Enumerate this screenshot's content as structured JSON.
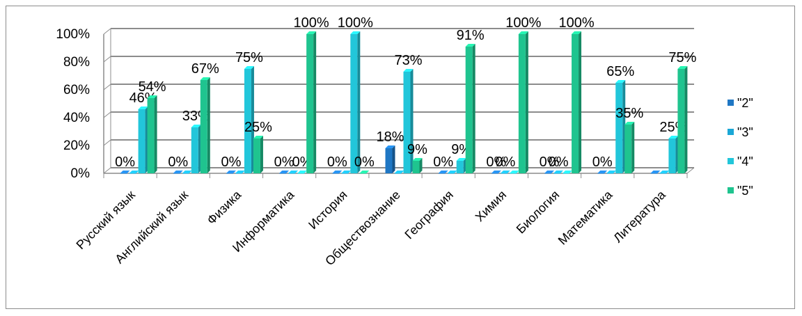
{
  "colors": {
    "2": "#1f77c4",
    "3": "#1aa7d6",
    "4": "#22c6da",
    "5": "#1fc48f",
    "axis": "#8c8c8c",
    "grid": "#8c8c8c"
  },
  "chart_data": {
    "type": "bar",
    "categories": [
      "Русский язык",
      "Английский язык",
      "Физика",
      "Информатика",
      "История",
      "Обществознание",
      "География",
      "Химия",
      "Биология",
      "Математика",
      "Литература"
    ],
    "ylim": [
      0,
      100
    ],
    "yticks": [
      "0%",
      "20%",
      "40%",
      "60%",
      "80%",
      "100%"
    ],
    "grid": true,
    "legend_position": "right",
    "series": [
      {
        "name": "\"2\"",
        "values": [
          0,
          0,
          0,
          0,
          0,
          18,
          0,
          0,
          0,
          0,
          0
        ],
        "labels": [
          "0%",
          "0%",
          "0%",
          "0%",
          "0%",
          "18%",
          "0%",
          "0%",
          "0%",
          "0%",
          ""
        ]
      },
      {
        "name": "\"3\"",
        "values": [
          0,
          0,
          0,
          0,
          0,
          0,
          0,
          0,
          0,
          0,
          0
        ],
        "labels": [
          "",
          "",
          "",
          "",
          "",
          "",
          "",
          "0%",
          "0%",
          "",
          ""
        ]
      },
      {
        "name": "\"4\"",
        "values": [
          46,
          33,
          75,
          0,
          100,
          73,
          9,
          0,
          0,
          65,
          25
        ],
        "labels": [
          "46%",
          "33%",
          "75%",
          "0%",
          "100%",
          "73%",
          "9%",
          "",
          "",
          "65%",
          "25%"
        ]
      },
      {
        "name": "\"5\"",
        "values": [
          54,
          67,
          25,
          100,
          0,
          9,
          91,
          100,
          100,
          35,
          75
        ],
        "labels": [
          "54%",
          "67%",
          "25%",
          "100%",
          "0%",
          "9%",
          "91%",
          "100%",
          "100%",
          "35%",
          "75%"
        ]
      }
    ]
  }
}
